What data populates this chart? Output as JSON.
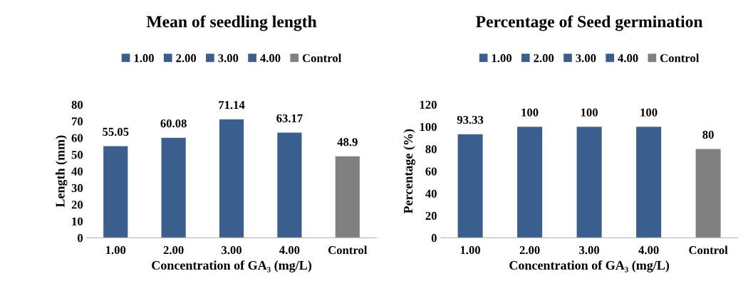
{
  "chart_data": [
    {
      "type": "bar",
      "title": "Mean of seedling length",
      "xlabel": "Concentration of GA₃ (mg/L)",
      "ylabel": "Length (mm)",
      "categories": [
        "1.00",
        "2.00",
        "3.00",
        "4.00",
        "Control"
      ],
      "stacked": true,
      "series": [
        {
          "name": "1.00",
          "color": "#3a5f8f",
          "values": [
            55.05,
            null,
            null,
            null,
            null
          ]
        },
        {
          "name": "2.00",
          "color": "#3a5f8f",
          "values": [
            null,
            60.08,
            null,
            null,
            null
          ]
        },
        {
          "name": "3.00",
          "color": "#3a5f8f",
          "values": [
            null,
            null,
            71.14,
            null,
            null
          ]
        },
        {
          "name": "4.00",
          "color": "#3a5f8f",
          "values": [
            null,
            null,
            null,
            63.17,
            null
          ]
        },
        {
          "name": "Control",
          "color": "#808080",
          "values": [
            null,
            null,
            null,
            null,
            48.9
          ]
        }
      ],
      "ylim": [
        0,
        80
      ],
      "yticks": [
        0,
        10,
        20,
        30,
        40,
        50,
        60,
        70,
        80
      ],
      "data_labels": true,
      "grid": false,
      "legend": "top"
    },
    {
      "type": "bar",
      "title": "Percentage of Seed germination",
      "xlabel": "Concentration of GA₃ (mg/L)",
      "ylabel": "Percentage (%)",
      "categories": [
        "1.00",
        "2.00",
        "3.00",
        "4.00",
        "Control"
      ],
      "stacked": true,
      "series": [
        {
          "name": "1.00",
          "color": "#3a5f8f",
          "values": [
            93.33,
            null,
            null,
            null,
            null
          ]
        },
        {
          "name": "2.00",
          "color": "#3a5f8f",
          "values": [
            null,
            100,
            null,
            null,
            null
          ]
        },
        {
          "name": "3.00",
          "color": "#3a5f8f",
          "values": [
            null,
            null,
            100,
            null,
            null
          ]
        },
        {
          "name": "4.00",
          "color": "#3a5f8f",
          "values": [
            null,
            null,
            null,
            100,
            null
          ]
        },
        {
          "name": "Control",
          "color": "#808080",
          "values": [
            null,
            null,
            null,
            null,
            80
          ]
        }
      ],
      "ylim": [
        0,
        120
      ],
      "yticks": [
        0,
        20,
        40,
        60,
        80,
        100,
        120
      ],
      "data_labels": true,
      "grid": false,
      "legend": "top"
    }
  ]
}
